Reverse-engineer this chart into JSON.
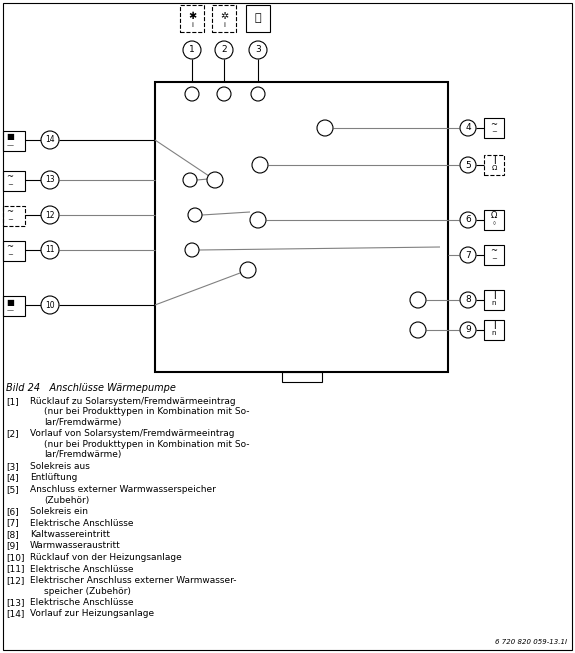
{
  "bg_color": "#ffffff",
  "title": "Bild 24   Anschlüsse Wärmepumpe",
  "watermark": "6 720 820 059-13.1I",
  "line_color": "#808080",
  "black": "#000000",
  "legend_items": [
    {
      "num": "[1]",
      "lines": [
        "Rücklauf zu Solarsystem/Fremdwärmeeintrag",
        "(nur bei Produkttypen in Kombination mit So-",
        "lar/Fremdwärme)"
      ]
    },
    {
      "num": "[2]",
      "lines": [
        "Vorlauf von Solarsystem/Fremdwärmeeintrag",
        "(nur bei Produkttypen in Kombination mit So-",
        "lar/Fremdwärme)"
      ]
    },
    {
      "num": "[3]",
      "lines": [
        "Solekreis aus"
      ]
    },
    {
      "num": "[4]",
      "lines": [
        "Entlüftung"
      ]
    },
    {
      "num": "[5]",
      "lines": [
        "Anschluss externer Warmwasserspeicher",
        "(Zubehör)"
      ]
    },
    {
      "num": "[6]",
      "lines": [
        "Solekreis ein"
      ]
    },
    {
      "num": "[7]",
      "lines": [
        "Elektrische Anschlüsse"
      ]
    },
    {
      "num": "[8]",
      "lines": [
        "Kaltwassereintritt"
      ]
    },
    {
      "num": "[9]",
      "lines": [
        "Warmwasseraustritt"
      ]
    },
    {
      "num": "[10]",
      "lines": [
        "Rücklauf von der Heizungsanlage"
      ]
    },
    {
      "num": "[11]",
      "lines": [
        "Elektrische Anschlüsse"
      ]
    },
    {
      "num": "[12]",
      "lines": [
        "Elektrischer Anschluss externer Warmwasser-",
        "speicher (Zubehör)"
      ]
    },
    {
      "num": "[13]",
      "lines": [
        "Elektrische Anschlüsse"
      ]
    },
    {
      "num": "[14]",
      "lines": [
        "Vorlauf zur Heizungsanlage"
      ]
    }
  ]
}
